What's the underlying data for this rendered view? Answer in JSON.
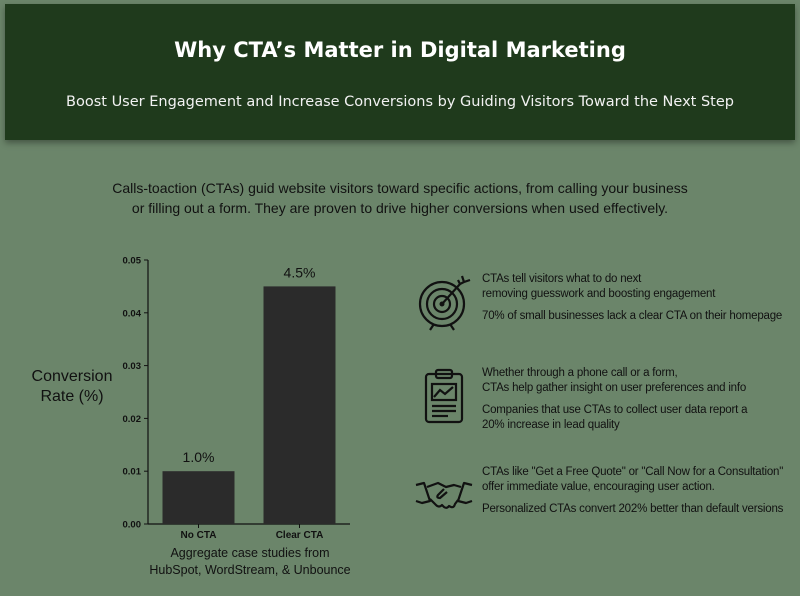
{
  "header": {
    "title": "Why CTA’s Matter in Digital Marketing",
    "subtitle": "Boost User Engagement and Increase Conversions by Guiding Visitors Toward the Next Step"
  },
  "intro": {
    "line1": "Calls-toaction (CTAs) guid website visitors toward specific actions, from calling your business",
    "line2": "or filling out a form. They are proven to drive higher conversions when used effectively."
  },
  "chart_data": {
    "type": "bar",
    "categories": [
      "No CTA",
      "Clear CTA"
    ],
    "values": [
      0.01,
      0.045
    ],
    "data_labels": [
      "1.0%",
      "4.5%"
    ],
    "ylabel_line1": "Conversion",
    "ylabel_line2": "Rate (%)",
    "ylim": [
      0,
      0.05
    ],
    "yticks": [
      "0.00",
      "0.01",
      "0.02",
      "0.03",
      "0.04",
      "0.05"
    ],
    "bar_color": "#2b2b2b",
    "grid": false,
    "source_line1": "Aggregate case studies from",
    "source_line2": "HubSpot, WordStream, & Unbounce"
  },
  "facts": [
    {
      "icon": "target-icon",
      "line1": "CTAs tell visitors what to do next",
      "line2": "removing guesswork and boosting engagement",
      "line3": "70% of small businesses lack a clear CTA on their homepage"
    },
    {
      "icon": "clipboard-chart-icon",
      "line1": "Whether through a phone call or a form,",
      "line2": "CTAs help gather insight on user preferences and info",
      "line3": "Companies that use CTAs to collect user data report a",
      "line4": "20% increase in lead quality"
    },
    {
      "icon": "handshake-icon",
      "line1": "CTAs like \"Get a Free Quote\" or \"Call Now for a Consultation\"",
      "line2": "offer immediate value, encouraging user action.",
      "line3": "Personalized CTAs convert 202% better than default versions"
    }
  ],
  "colors": {
    "background": "#6b856a",
    "header": "#1f3a1c",
    "bars": "#2b2b2b"
  }
}
